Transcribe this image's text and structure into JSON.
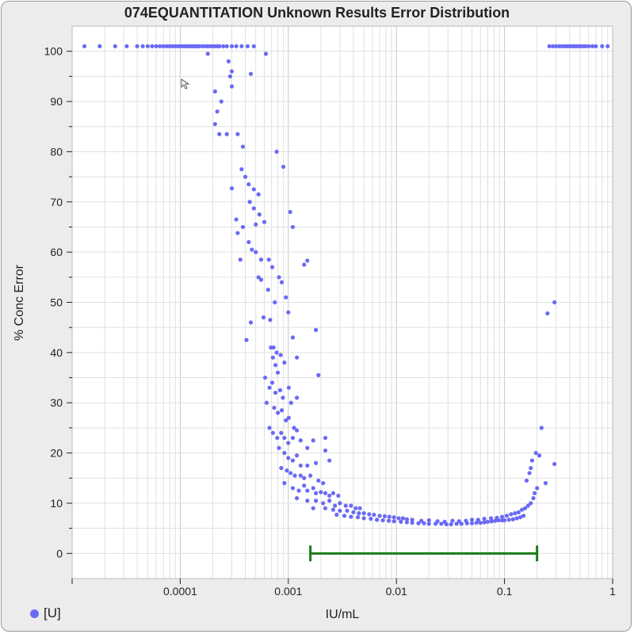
{
  "chart_data": {
    "type": "scatter",
    "title": "074EQUANTITATION Unknown Results Error Distribution",
    "xlabel": "IU/mL",
    "ylabel": "% Conc Error",
    "x_scale": "log",
    "xlim": [
      1e-05,
      1
    ],
    "ylim": [
      -5,
      105
    ],
    "x_tick_labels": [
      "0.0001",
      "0.001",
      "0.01",
      "0.1",
      "1"
    ],
    "y_tick_labels": [
      "0",
      "10",
      "20",
      "30",
      "40",
      "50",
      "60",
      "70",
      "80",
      "90",
      "100"
    ],
    "grid": true,
    "legend": {
      "placement": "bottom-left",
      "entries": [
        {
          "name": "[U]",
          "color": "#6a6af5"
        }
      ]
    },
    "series": [
      {
        "name": "[U]",
        "color": "#6a6af5",
        "points": [
          [
            1.3e-05,
            101
          ],
          [
            1.8e-05,
            101
          ],
          [
            2.5e-05,
            101
          ],
          [
            3.2e-05,
            101
          ],
          [
            4e-05,
            101
          ],
          [
            4.5e-05,
            101
          ],
          [
            5e-05,
            101
          ],
          [
            5.5e-05,
            101
          ],
          [
            6e-05,
            101
          ],
          [
            6.5e-05,
            101
          ],
          [
            7e-05,
            101
          ],
          [
            7.5e-05,
            101
          ],
          [
            8e-05,
            101
          ],
          [
            8.5e-05,
            101
          ],
          [
            9e-05,
            101
          ],
          [
            9.5e-05,
            101
          ],
          [
            0.0001,
            101
          ],
          [
            0.000105,
            101
          ],
          [
            0.00011,
            101
          ],
          [
            0.000115,
            101
          ],
          [
            0.00012,
            101
          ],
          [
            0.000125,
            101
          ],
          [
            0.00013,
            101
          ],
          [
            0.000135,
            101
          ],
          [
            0.00014,
            101
          ],
          [
            0.000145,
            101
          ],
          [
            0.00015,
            101
          ],
          [
            0.00016,
            101
          ],
          [
            0.00017,
            101
          ],
          [
            0.00018,
            101
          ],
          [
            0.00019,
            101
          ],
          [
            0.0002,
            101
          ],
          [
            0.00021,
            101
          ],
          [
            0.00022,
            101
          ],
          [
            0.00023,
            101
          ],
          [
            0.00025,
            101
          ],
          [
            0.00027,
            101
          ],
          [
            0.0003,
            101
          ],
          [
            0.00033,
            101
          ],
          [
            0.00037,
            101
          ],
          [
            0.00042,
            101
          ],
          [
            0.00048,
            101
          ],
          [
            0.26,
            101
          ],
          [
            0.28,
            101
          ],
          [
            0.3,
            101
          ],
          [
            0.32,
            101
          ],
          [
            0.34,
            101
          ],
          [
            0.36,
            101
          ],
          [
            0.38,
            101
          ],
          [
            0.4,
            101
          ],
          [
            0.42,
            101
          ],
          [
            0.44,
            101
          ],
          [
            0.46,
            101
          ],
          [
            0.48,
            101
          ],
          [
            0.5,
            101
          ],
          [
            0.53,
            101
          ],
          [
            0.56,
            101
          ],
          [
            0.6,
            101
          ],
          [
            0.65,
            101
          ],
          [
            0.7,
            101
          ],
          [
            0.8,
            101
          ],
          [
            0.9,
            101
          ],
          [
            0.00018,
            99.5
          ],
          [
            0.00062,
            99.5
          ],
          [
            0.00028,
            98
          ],
          [
            0.0003,
            96
          ],
          [
            0.00029,
            95
          ],
          [
            0.0003,
            93
          ],
          [
            0.00045,
            95.5
          ],
          [
            0.00021,
            92
          ],
          [
            0.00024,
            90
          ],
          [
            0.00022,
            88
          ],
          [
            0.00021,
            85.5
          ],
          [
            0.00023,
            83.5
          ],
          [
            0.00027,
            83.5
          ],
          [
            0.00034,
            83.5
          ],
          [
            0.00038,
            81
          ],
          [
            0.00078,
            80
          ],
          [
            0.0009,
            77
          ],
          [
            0.00037,
            76.5
          ],
          [
            0.0004,
            75
          ],
          [
            0.00043,
            73.5
          ],
          [
            0.0003,
            72.7
          ],
          [
            0.00048,
            72.5
          ],
          [
            0.00053,
            71.5
          ],
          [
            0.00044,
            70
          ],
          [
            0.00048,
            68.7
          ],
          [
            0.00054,
            67.5
          ],
          [
            0.00104,
            68
          ],
          [
            0.00033,
            66.5
          ],
          [
            0.00038,
            65
          ],
          [
            0.0005,
            65.5
          ],
          [
            0.0006,
            66
          ],
          [
            0.0011,
            65
          ],
          [
            0.00034,
            63.8
          ],
          [
            0.00043,
            62
          ],
          [
            0.00046,
            60.5
          ],
          [
            0.0005,
            60
          ],
          [
            0.00056,
            58.5
          ],
          [
            0.00036,
            58.5
          ],
          [
            0.00066,
            58.5
          ],
          [
            0.00071,
            57
          ],
          [
            0.0015,
            58.3
          ],
          [
            0.0014,
            57.5
          ],
          [
            0.00053,
            55
          ],
          [
            0.00056,
            54.5
          ],
          [
            0.00082,
            55
          ],
          [
            0.00087,
            54
          ],
          [
            0.00065,
            52.5
          ],
          [
            0.00075,
            50
          ],
          [
            0.00095,
            51
          ],
          [
            0.001,
            48
          ],
          [
            0.00059,
            47
          ],
          [
            0.00068,
            46.5
          ],
          [
            0.00045,
            46
          ],
          [
            0.00041,
            42.5
          ],
          [
            0.0011,
            43
          ],
          [
            0.0018,
            44.5
          ],
          [
            0.00069,
            41
          ],
          [
            0.00073,
            41
          ],
          [
            0.00078,
            40
          ],
          [
            0.00072,
            39
          ],
          [
            0.00085,
            39.5
          ],
          [
            0.00076,
            37.5
          ],
          [
            0.0008,
            36
          ],
          [
            0.00092,
            38
          ],
          [
            0.0012,
            39
          ],
          [
            0.0019,
            35.5
          ],
          [
            0.00061,
            35
          ],
          [
            0.00067,
            33
          ],
          [
            0.00071,
            34
          ],
          [
            0.00076,
            32
          ],
          [
            0.00084,
            32.5
          ],
          [
            0.00089,
            31
          ],
          [
            0.00101,
            33
          ],
          [
            0.00106,
            30
          ],
          [
            0.0012,
            31
          ],
          [
            0.00063,
            30
          ],
          [
            0.00074,
            29
          ],
          [
            0.0008,
            28
          ],
          [
            0.00087,
            28.5
          ],
          [
            0.00095,
            26.5
          ],
          [
            0.00101,
            27
          ],
          [
            0.00113,
            25
          ],
          [
            0.00067,
            25
          ],
          [
            0.00072,
            24
          ],
          [
            0.00079,
            23
          ],
          [
            0.00086,
            24
          ],
          [
            0.00092,
            23
          ],
          [
            0.001,
            22
          ],
          [
            0.0011,
            23
          ],
          [
            0.0012,
            24.5
          ],
          [
            0.0013,
            22.5
          ],
          [
            0.0015,
            21
          ],
          [
            0.0017,
            22.5
          ],
          [
            0.0022,
            20.5
          ],
          [
            0.0022,
            23
          ],
          [
            0.00082,
            21
          ],
          [
            0.00092,
            20
          ],
          [
            0.001,
            19
          ],
          [
            0.0011,
            18.5
          ],
          [
            0.0012,
            19.5
          ],
          [
            0.0013,
            17.5
          ],
          [
            0.0015,
            17.5
          ],
          [
            0.0018,
            18
          ],
          [
            0.0024,
            18.5
          ],
          [
            0.00086,
            17
          ],
          [
            0.00097,
            16.5
          ],
          [
            0.00105,
            16
          ],
          [
            0.00115,
            15.5
          ],
          [
            0.0013,
            15.5
          ],
          [
            0.0014,
            15
          ],
          [
            0.0016,
            15.5
          ],
          [
            0.0019,
            14.5
          ],
          [
            0.0021,
            14
          ],
          [
            0.00092,
            14
          ],
          [
            0.0011,
            13
          ],
          [
            0.00125,
            12.5
          ],
          [
            0.0014,
            13.5
          ],
          [
            0.0015,
            12.5
          ],
          [
            0.0017,
            13
          ],
          [
            0.0018,
            12
          ],
          [
            0.002,
            12.2
          ],
          [
            0.0022,
            12
          ],
          [
            0.0024,
            11.5
          ],
          [
            0.0026,
            12
          ],
          [
            0.0029,
            11.5
          ],
          [
            0.0012,
            11
          ],
          [
            0.0015,
            10.5
          ],
          [
            0.0018,
            10.5
          ],
          [
            0.0021,
            10
          ],
          [
            0.0024,
            10.5
          ],
          [
            0.0027,
            9.5
          ],
          [
            0.003,
            10
          ],
          [
            0.0034,
            9.5
          ],
          [
            0.0038,
            9.5
          ],
          [
            0.0042,
            9
          ],
          [
            0.0046,
            9
          ],
          [
            0.0017,
            9
          ],
          [
            0.0022,
            9
          ],
          [
            0.0026,
            8.7
          ],
          [
            0.003,
            8.5
          ],
          [
            0.0035,
            8.5
          ],
          [
            0.004,
            8.2
          ],
          [
            0.0045,
            8
          ],
          [
            0.005,
            8
          ],
          [
            0.0056,
            7.8
          ],
          [
            0.0062,
            7.7
          ],
          [
            0.007,
            7.5
          ],
          [
            0.0078,
            7.4
          ],
          [
            0.0086,
            7.3
          ],
          [
            0.0095,
            7.2
          ],
          [
            0.0105,
            7
          ],
          [
            0.0115,
            7
          ],
          [
            0.0125,
            6.8
          ],
          [
            0.014,
            6.7
          ],
          [
            0.0028,
            7.7
          ],
          [
            0.0033,
            7.5
          ],
          [
            0.0038,
            7.3
          ],
          [
            0.0044,
            7.2
          ],
          [
            0.005,
            7
          ],
          [
            0.0058,
            6.9
          ],
          [
            0.0066,
            6.7
          ],
          [
            0.0075,
            6.6
          ],
          [
            0.0085,
            6.5
          ],
          [
            0.0095,
            6.4
          ],
          [
            0.011,
            6.3
          ],
          [
            0.0125,
            6.2
          ],
          [
            0.014,
            6.1
          ],
          [
            0.016,
            6.0
          ],
          [
            0.018,
            6.0
          ],
          [
            0.02,
            5.9
          ],
          [
            0.023,
            5.9
          ],
          [
            0.026,
            5.9
          ],
          [
            0.029,
            5.8
          ],
          [
            0.032,
            5.8
          ],
          [
            0.036,
            5.9
          ],
          [
            0.04,
            5.9
          ],
          [
            0.045,
            6.0
          ],
          [
            0.05,
            6.0
          ],
          [
            0.055,
            6.1
          ],
          [
            0.06,
            6.1
          ],
          [
            0.065,
            6.2
          ],
          [
            0.07,
            6.3
          ],
          [
            0.076,
            6.4
          ],
          [
            0.082,
            6.5
          ],
          [
            0.088,
            6.6
          ],
          [
            0.095,
            6.6
          ],
          [
            0.1,
            6.6
          ],
          [
            0.11,
            6.7
          ],
          [
            0.12,
            6.8
          ],
          [
            0.13,
            7
          ],
          [
            0.14,
            7.2
          ],
          [
            0.15,
            7.5
          ],
          [
            0.017,
            6.5
          ],
          [
            0.02,
            6.6
          ],
          [
            0.024,
            6.4
          ],
          [
            0.028,
            6.3
          ],
          [
            0.033,
            6.5
          ],
          [
            0.038,
            6.4
          ],
          [
            0.044,
            6.5
          ],
          [
            0.05,
            6.7
          ],
          [
            0.057,
            6.7
          ],
          [
            0.065,
            6.9
          ],
          [
            0.075,
            7
          ],
          [
            0.085,
            7.1
          ],
          [
            0.095,
            7.3
          ],
          [
            0.105,
            7.5
          ],
          [
            0.115,
            7.8
          ],
          [
            0.125,
            8
          ],
          [
            0.135,
            8.2
          ],
          [
            0.145,
            8.7
          ],
          [
            0.155,
            9
          ],
          [
            0.165,
            9.5
          ],
          [
            0.175,
            10
          ],
          [
            0.185,
            11
          ],
          [
            0.19,
            12
          ],
          [
            0.2,
            13
          ],
          [
            0.16,
            14.5
          ],
          [
            0.17,
            16
          ],
          [
            0.175,
            17
          ],
          [
            0.18,
            18.5
          ],
          [
            0.21,
            19.5
          ],
          [
            0.195,
            20
          ],
          [
            0.24,
            14
          ],
          [
            0.22,
            25
          ],
          [
            0.25,
            47.8
          ],
          [
            0.29,
            50
          ],
          [
            0.29,
            17.8
          ]
        ]
      }
    ],
    "range_bar": {
      "x_start": 0.0016,
      "x_end": 0.2,
      "y": 0,
      "color": "#1a7a1a"
    }
  }
}
